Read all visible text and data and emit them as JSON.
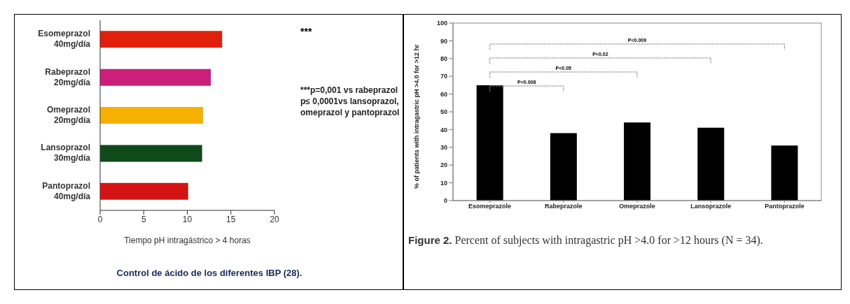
{
  "chart_data": [
    {
      "type": "bar",
      "orientation": "horizontal",
      "title": "Control de ácido de los diferentes IBP (28).",
      "xlabel": "Tiempo pH intragástrico > 4 horas",
      "categories": [
        "Esomeprazol 40mg/día",
        "Rabeprazol 20mg/día",
        "Omeprazol 20mg/día",
        "Lansoprazol 30mg/día",
        "Pantoprazol 40mg/día"
      ],
      "values": [
        14.0,
        12.7,
        11.8,
        11.7,
        10.1
      ],
      "colors": [
        "#e0200c",
        "#cc1f7a",
        "#f5b000",
        "#0f4a1a",
        "#d41414"
      ],
      "xlim": [
        0,
        20
      ],
      "xticks": [
        0,
        5,
        10,
        15,
        20
      ],
      "grid": false,
      "legend": false,
      "annotations": [
        "***",
        "***p=0,001 vs rabeprazol p≤ 0,0001vs lansoprazol, omeprazol y pantoprazol"
      ]
    },
    {
      "type": "bar",
      "title": "Figure 2. Percent of subjects with intragastric pH >4.0 for >12 hours (N = 34).",
      "ylabel": "% of patients with intragastric pH >4.0 for >12 hr",
      "categories": [
        "Esomeprazole",
        "Rabeprazole",
        "Omeprazole",
        "Lansoprazole",
        "Pantoprazole"
      ],
      "values": [
        65,
        38,
        44,
        41,
        31
      ],
      "color": "#000000",
      "ylim": [
        0,
        100
      ],
      "yticks": [
        0,
        10,
        20,
        30,
        40,
        50,
        60,
        70,
        80,
        90,
        100
      ],
      "grid": false,
      "legend": false,
      "annotations": [
        "P<0.008",
        "P<0.05",
        "P<0.02",
        "P<0.009"
      ]
    }
  ]
}
